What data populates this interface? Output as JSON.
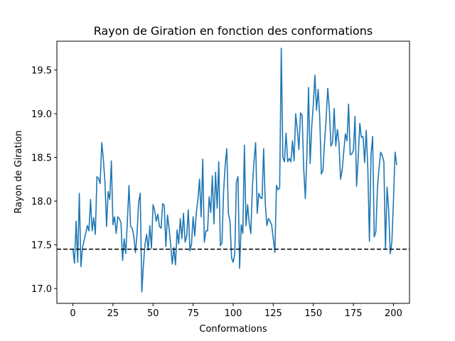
{
  "chart_data": {
    "type": "line",
    "title": "Rayon de Giration en fonction des conformations",
    "xlabel": "Conformations",
    "ylabel": "Rayon de Giration",
    "xlim": [
      -10,
      210
    ],
    "ylim": [
      16.83,
      19.83
    ],
    "xticks": [
      0,
      25,
      50,
      75,
      100,
      125,
      150,
      175,
      200
    ],
    "yticks": [
      17.0,
      17.5,
      18.0,
      18.5,
      19.0,
      19.5
    ],
    "ytick_labels": [
      "17.0",
      "17.5",
      "18.0",
      "18.5",
      "19.0",
      "19.5"
    ],
    "grid": false,
    "series": [
      {
        "name": "Rayon de Giration",
        "color": "#1f77b4",
        "x_start": 0,
        "x_step": 1,
        "values": [
          17.45,
          17.29,
          17.77,
          17.3,
          18.09,
          17.25,
          17.47,
          17.55,
          17.63,
          17.72,
          17.66,
          18.02,
          17.66,
          17.81,
          17.62,
          18.28,
          18.26,
          18.2,
          18.67,
          18.48,
          18.21,
          17.71,
          18.11,
          18.02,
          18.46,
          17.73,
          17.82,
          17.63,
          17.82,
          17.8,
          17.75,
          17.32,
          17.57,
          17.4,
          17.78,
          18.18,
          17.71,
          17.69,
          17.6,
          17.41,
          17.62,
          17.98,
          18.09,
          16.96,
          17.27,
          17.51,
          17.62,
          17.44,
          17.72,
          17.46,
          17.96,
          17.89,
          17.77,
          17.85,
          17.71,
          17.69,
          17.97,
          17.95,
          17.48,
          17.84,
          17.69,
          17.5,
          17.28,
          17.47,
          17.27,
          17.67,
          17.51,
          17.8,
          17.57,
          17.86,
          17.53,
          17.6,
          17.9,
          17.43,
          17.51,
          17.82,
          17.6,
          17.87,
          18.02,
          18.25,
          17.82,
          18.48,
          17.53,
          17.66,
          17.66,
          18.05,
          17.87,
          18.29,
          17.74,
          18.33,
          17.92,
          18.45,
          17.49,
          17.52,
          18.1,
          18.41,
          18.6,
          17.86,
          17.77,
          17.35,
          17.3,
          17.4,
          18.22,
          18.28,
          17.23,
          17.73,
          17.63,
          18.64,
          17.72,
          17.96,
          17.75,
          17.63,
          18.17,
          18.46,
          18.67,
          17.86,
          18.09,
          18.04,
          18.03,
          18.6,
          17.98,
          17.72,
          17.8,
          17.77,
          17.73,
          17.57,
          17.41,
          18.18,
          18.13,
          18.15,
          19.75,
          18.5,
          18.45,
          18.78,
          18.45,
          18.49,
          18.45,
          18.69,
          18.46,
          19.0,
          18.82,
          18.59,
          19.01,
          18.98,
          18.37,
          18.03,
          18.53,
          19.3,
          18.43,
          18.85,
          19.11,
          19.44,
          19.04,
          19.28,
          18.96,
          18.31,
          18.35,
          18.67,
          18.95,
          19.29,
          19.05,
          18.63,
          18.67,
          19.06,
          18.63,
          18.82,
          18.66,
          18.25,
          18.36,
          18.57,
          18.77,
          18.69,
          19.11,
          18.53,
          18.54,
          18.58,
          18.97,
          18.17,
          18.5,
          18.89,
          18.73,
          18.74,
          18.44,
          18.81,
          18.37,
          17.54,
          18.53,
          18.74,
          17.59,
          17.65,
          18.15,
          18.38,
          18.56,
          18.52,
          18.45,
          17.45,
          18.16,
          17.9,
          17.4,
          17.53,
          18.01,
          18.56,
          18.42
        ]
      }
    ],
    "reference_lines": [
      {
        "orientation": "horizontal",
        "value": 17.45,
        "style": "dashed",
        "color": "#000000"
      }
    ]
  }
}
